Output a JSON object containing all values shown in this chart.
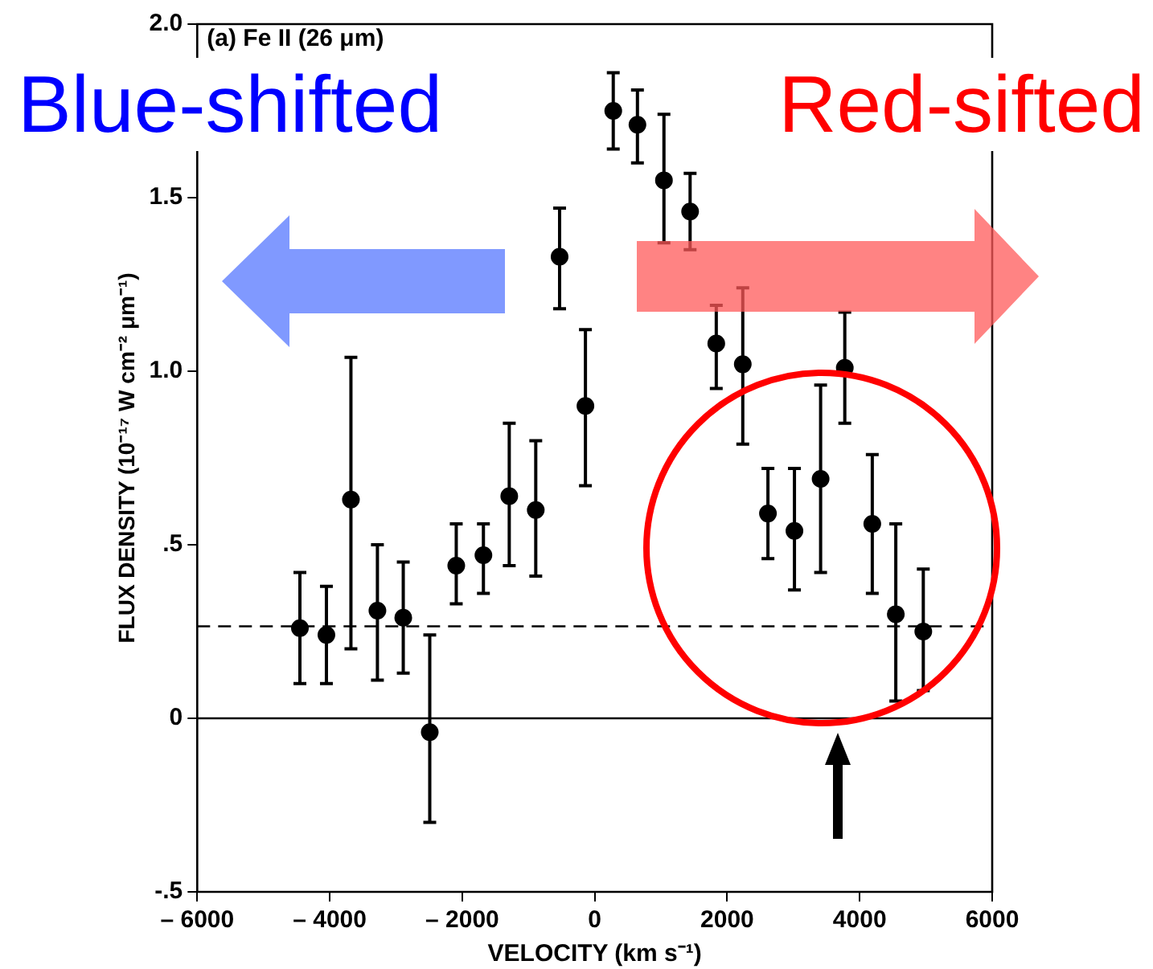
{
  "chart_data": {
    "type": "scatter",
    "title": "(a) Fe II (26 μm)",
    "xlabel": "VELOCITY (km s⁻¹)",
    "ylabel": "FLUX DENSITY (10⁻¹⁷ W cm⁻² μm⁻¹)",
    "annotations": [
      "Blue-shifted",
      "Red-sifted"
    ],
    "x": [
      -4450,
      -4050,
      -3680,
      -3280,
      -2890,
      -2490,
      -2090,
      -1680,
      -1290,
      -890,
      -530,
      -140,
      280,
      645,
      1045,
      1440,
      1835,
      2235,
      2615,
      3015,
      3410,
      3775,
      4190,
      4545,
      4960
    ],
    "series": [
      {
        "color": "#000000",
        "values": [
          0.26,
          0.24,
          0.63,
          0.31,
          0.29,
          -0.04,
          0.44,
          0.47,
          0.64,
          0.6,
          1.33,
          0.9,
          1.75,
          1.71,
          1.55,
          1.46,
          1.08,
          1.02,
          0.59,
          0.54,
          0.69,
          1.01,
          0.56,
          0.3,
          0.25
        ],
        "errors": [
          [
            0.1,
            0.42
          ],
          [
            0.1,
            0.38
          ],
          [
            0.2,
            1.04
          ],
          [
            0.11,
            0.5
          ],
          [
            0.13,
            0.45
          ],
          [
            -0.3,
            0.24
          ],
          [
            0.33,
            0.56
          ],
          [
            0.36,
            0.56
          ],
          [
            0.44,
            0.85
          ],
          [
            0.41,
            0.8
          ],
          [
            1.18,
            1.47
          ],
          [
            0.67,
            1.12
          ],
          [
            1.64,
            1.86
          ],
          [
            1.6,
            1.81
          ],
          [
            1.37,
            1.74
          ],
          [
            1.35,
            1.57
          ],
          [
            0.95,
            1.19
          ],
          [
            0.79,
            1.24
          ],
          [
            0.46,
            0.72
          ],
          [
            0.37,
            0.72
          ],
          [
            0.42,
            0.96
          ],
          [
            0.85,
            1.17
          ],
          [
            0.36,
            0.76
          ],
          [
            0.05,
            0.56
          ],
          [
            0.08,
            0.43
          ]
        ]
      }
    ],
    "xlim": [
      -6000,
      6000
    ],
    "xticks": [
      {
        "value": -6000,
        "label": "– 6000"
      },
      {
        "value": -4000,
        "label": "– 4000"
      },
      {
        "value": -2000,
        "label": "– 2000"
      },
      0,
      2000,
      4000,
      6000
    ],
    "ylim": [
      -0.5,
      2.0
    ],
    "yticks": [
      {
        "value": -0.5,
        "label": "-.5"
      },
      {
        "value": 0,
        "label": "0"
      },
      {
        "value": 0.5,
        "label": ".5"
      },
      {
        "value": 1.0,
        "label": "1.0"
      },
      {
        "value": 1.5,
        "label": "1.5"
      },
      {
        "value": 2.0,
        "label": "2.0"
      }
    ],
    "ref_lines": [
      {
        "axis": "y",
        "value": 0.265,
        "line_style": "dashed",
        "color": "#000000"
      },
      {
        "axis": "y",
        "value": 0,
        "line_style": "solid",
        "color": "#000000"
      }
    ],
    "grid": false,
    "legend": false,
    "marker": "circle"
  }
}
